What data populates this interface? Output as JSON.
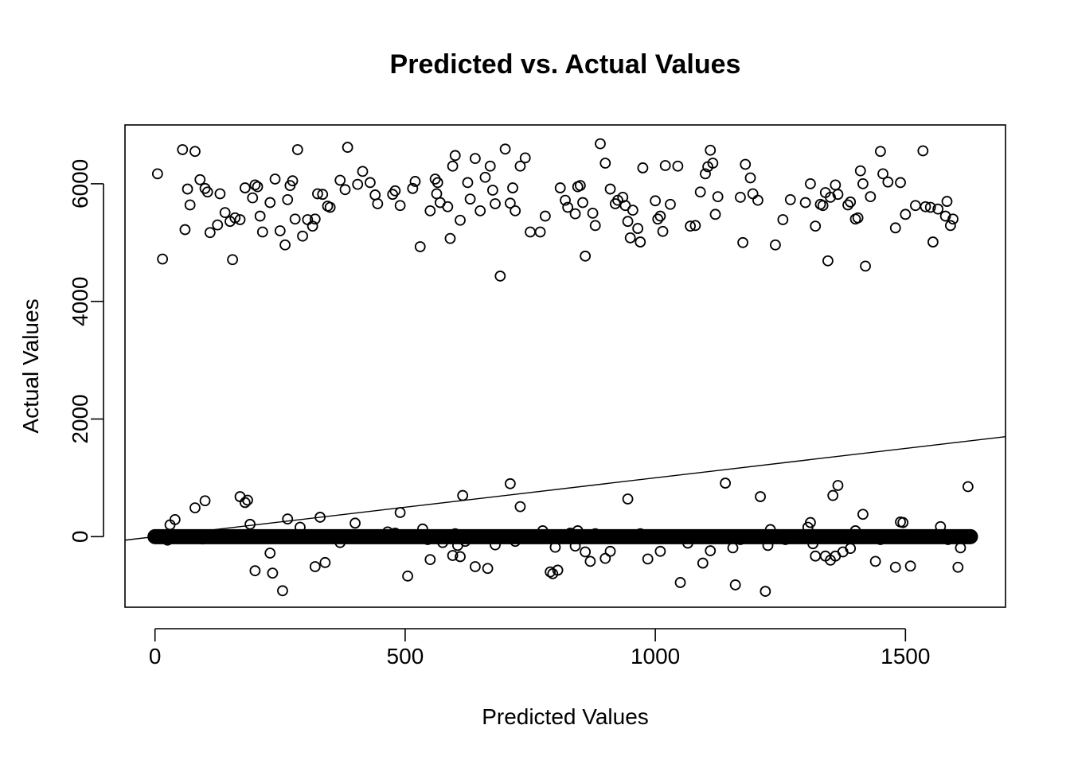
{
  "chart_data": {
    "type": "scatter",
    "title": "Predicted vs. Actual Values",
    "xlabel": "Predicted Values",
    "ylabel": "Actual Values",
    "xlim": [
      -60,
      1700
    ],
    "ylim": [
      -1200,
      7000
    ],
    "x_ticks": [
      0,
      500,
      1000,
      1500
    ],
    "x_tick_labels": [
      "0",
      "500",
      "1000",
      "1500"
    ],
    "y_ticks": [
      0,
      2000,
      4000,
      6000
    ],
    "y_tick_labels": [
      "0",
      "2000",
      "4000",
      "6000"
    ],
    "grid": false,
    "legend": "none",
    "reference_line": {
      "slope": 1,
      "intercept": 0,
      "label": "y = x"
    },
    "dense_band": {
      "y": 0,
      "x_from": 0,
      "x_to": 1630
    },
    "points": [
      [
        5,
        6170
      ],
      [
        15,
        4720
      ],
      [
        55,
        6580
      ],
      [
        60,
        5220
      ],
      [
        65,
        5910
      ],
      [
        70,
        5640
      ],
      [
        80,
        6550
      ],
      [
        90,
        6070
      ],
      [
        100,
        5920
      ],
      [
        105,
        5860
      ],
      [
        110,
        5170
      ],
      [
        125,
        5300
      ],
      [
        130,
        5830
      ],
      [
        140,
        5510
      ],
      [
        150,
        5360
      ],
      [
        155,
        4710
      ],
      [
        160,
        5420
      ],
      [
        170,
        5390
      ],
      [
        180,
        5930
      ],
      [
        195,
        5760
      ],
      [
        200,
        5980
      ],
      [
        205,
        5950
      ],
      [
        210,
        5450
      ],
      [
        215,
        5180
      ],
      [
        230,
        5680
      ],
      [
        240,
        6080
      ],
      [
        250,
        5200
      ],
      [
        260,
        4960
      ],
      [
        265,
        5730
      ],
      [
        270,
        5970
      ],
      [
        275,
        6050
      ],
      [
        280,
        5400
      ],
      [
        285,
        6580
      ],
      [
        295,
        5110
      ],
      [
        305,
        5390
      ],
      [
        315,
        5280
      ],
      [
        320,
        5400
      ],
      [
        325,
        5830
      ],
      [
        335,
        5820
      ],
      [
        345,
        5620
      ],
      [
        350,
        5600
      ],
      [
        370,
        6060
      ],
      [
        380,
        5900
      ],
      [
        385,
        6620
      ],
      [
        405,
        5990
      ],
      [
        415,
        6210
      ],
      [
        430,
        6020
      ],
      [
        440,
        5810
      ],
      [
        445,
        5660
      ],
      [
        475,
        5820
      ],
      [
        480,
        5880
      ],
      [
        490,
        5630
      ],
      [
        515,
        5920
      ],
      [
        520,
        6040
      ],
      [
        530,
        4930
      ],
      [
        550,
        5540
      ],
      [
        560,
        6080
      ],
      [
        563,
        5830
      ],
      [
        565,
        6020
      ],
      [
        570,
        5680
      ],
      [
        585,
        5610
      ],
      [
        590,
        5070
      ],
      [
        595,
        6300
      ],
      [
        600,
        6480
      ],
      [
        610,
        5380
      ],
      [
        625,
        6020
      ],
      [
        630,
        5740
      ],
      [
        640,
        6430
      ],
      [
        650,
        5540
      ],
      [
        660,
        6110
      ],
      [
        670,
        6300
      ],
      [
        675,
        5890
      ],
      [
        680,
        5660
      ],
      [
        690,
        4430
      ],
      [
        700,
        6590
      ],
      [
        710,
        5670
      ],
      [
        715,
        5930
      ],
      [
        720,
        5540
      ],
      [
        730,
        6300
      ],
      [
        740,
        6440
      ],
      [
        750,
        5180
      ],
      [
        770,
        5180
      ],
      [
        780,
        5450
      ],
      [
        810,
        5930
      ],
      [
        820,
        5720
      ],
      [
        825,
        5600
      ],
      [
        840,
        5490
      ],
      [
        845,
        5950
      ],
      [
        850,
        5970
      ],
      [
        855,
        5680
      ],
      [
        860,
        4770
      ],
      [
        875,
        5500
      ],
      [
        880,
        5290
      ],
      [
        890,
        6680
      ],
      [
        900,
        6350
      ],
      [
        910,
        5910
      ],
      [
        920,
        5660
      ],
      [
        925,
        5720
      ],
      [
        935,
        5770
      ],
      [
        940,
        5630
      ],
      [
        945,
        5360
      ],
      [
        950,
        5080
      ],
      [
        955,
        5550
      ],
      [
        965,
        5240
      ],
      [
        970,
        5010
      ],
      [
        975,
        6270
      ],
      [
        1000,
        5710
      ],
      [
        1005,
        5400
      ],
      [
        1010,
        5450
      ],
      [
        1015,
        5190
      ],
      [
        1020,
        6310
      ],
      [
        1030,
        5650
      ],
      [
        1045,
        6300
      ],
      [
        1070,
        5280
      ],
      [
        1080,
        5290
      ],
      [
        1090,
        5860
      ],
      [
        1100,
        6170
      ],
      [
        1105,
        6290
      ],
      [
        1110,
        6570
      ],
      [
        1115,
        6350
      ],
      [
        1120,
        5480
      ],
      [
        1125,
        5780
      ],
      [
        1170,
        5770
      ],
      [
        1175,
        5000
      ],
      [
        1180,
        6330
      ],
      [
        1190,
        6100
      ],
      [
        1195,
        5830
      ],
      [
        1205,
        5720
      ],
      [
        1240,
        4960
      ],
      [
        1255,
        5390
      ],
      [
        1270,
        5730
      ],
      [
        1300,
        5680
      ],
      [
        1310,
        6000
      ],
      [
        1320,
        5280
      ],
      [
        1330,
        5650
      ],
      [
        1335,
        5630
      ],
      [
        1340,
        5850
      ],
      [
        1345,
        4690
      ],
      [
        1350,
        5770
      ],
      [
        1360,
        5980
      ],
      [
        1365,
        5820
      ],
      [
        1385,
        5640
      ],
      [
        1390,
        5690
      ],
      [
        1400,
        5400
      ],
      [
        1405,
        5420
      ],
      [
        1410,
        6220
      ],
      [
        1415,
        6000
      ],
      [
        1420,
        4600
      ],
      [
        1430,
        5780
      ],
      [
        1450,
        6550
      ],
      [
        1455,
        6170
      ],
      [
        1465,
        6030
      ],
      [
        1480,
        5250
      ],
      [
        1490,
        6020
      ],
      [
        1500,
        5480
      ],
      [
        1520,
        5630
      ],
      [
        1535,
        6560
      ],
      [
        1540,
        5610
      ],
      [
        1550,
        5600
      ],
      [
        1555,
        5010
      ],
      [
        1565,
        5570
      ],
      [
        1580,
        5450
      ],
      [
        1583,
        5700
      ],
      [
        1590,
        5290
      ],
      [
        1595,
        5400
      ],
      [
        25,
        -60
      ],
      [
        30,
        200
      ],
      [
        40,
        290
      ],
      [
        80,
        490
      ],
      [
        95,
        -40
      ],
      [
        100,
        610
      ],
      [
        170,
        680
      ],
      [
        180,
        580
      ],
      [
        185,
        620
      ],
      [
        190,
        210
      ],
      [
        200,
        -580
      ],
      [
        230,
        -280
      ],
      [
        235,
        -620
      ],
      [
        255,
        -920
      ],
      [
        265,
        300
      ],
      [
        290,
        160
      ],
      [
        320,
        -510
      ],
      [
        330,
        330
      ],
      [
        340,
        -440
      ],
      [
        370,
        -100
      ],
      [
        400,
        230
      ],
      [
        465,
        80
      ],
      [
        480,
        60
      ],
      [
        490,
        410
      ],
      [
        505,
        -670
      ],
      [
        535,
        130
      ],
      [
        545,
        -50
      ],
      [
        550,
        -390
      ],
      [
        575,
        -100
      ],
      [
        595,
        -320
      ],
      [
        600,
        50
      ],
      [
        605,
        -150
      ],
      [
        610,
        -340
      ],
      [
        615,
        700
      ],
      [
        620,
        -80
      ],
      [
        640,
        -510
      ],
      [
        665,
        -540
      ],
      [
        680,
        -140
      ],
      [
        710,
        900
      ],
      [
        720,
        -80
      ],
      [
        730,
        510
      ],
      [
        775,
        100
      ],
      [
        790,
        -600
      ],
      [
        795,
        -630
      ],
      [
        800,
        -180
      ],
      [
        805,
        -570
      ],
      [
        830,
        60
      ],
      [
        840,
        -160
      ],
      [
        845,
        100
      ],
      [
        860,
        -260
      ],
      [
        870,
        -420
      ],
      [
        880,
        50
      ],
      [
        900,
        -370
      ],
      [
        910,
        -250
      ],
      [
        945,
        640
      ],
      [
        970,
        50
      ],
      [
        985,
        -380
      ],
      [
        1010,
        -250
      ],
      [
        1050,
        -780
      ],
      [
        1065,
        -110
      ],
      [
        1095,
        -450
      ],
      [
        1110,
        -240
      ],
      [
        1140,
        910
      ],
      [
        1155,
        -190
      ],
      [
        1160,
        -820
      ],
      [
        1170,
        -50
      ],
      [
        1210,
        680
      ],
      [
        1220,
        -930
      ],
      [
        1225,
        -150
      ],
      [
        1230,
        120
      ],
      [
        1260,
        -50
      ],
      [
        1305,
        160
      ],
      [
        1310,
        240
      ],
      [
        1315,
        -120
      ],
      [
        1320,
        -330
      ],
      [
        1340,
        -330
      ],
      [
        1350,
        -400
      ],
      [
        1355,
        700
      ],
      [
        1360,
        -330
      ],
      [
        1365,
        870
      ],
      [
        1375,
        -260
      ],
      [
        1390,
        -200
      ],
      [
        1400,
        100
      ],
      [
        1415,
        380
      ],
      [
        1440,
        -420
      ],
      [
        1450,
        -50
      ],
      [
        1480,
        -520
      ],
      [
        1490,
        250
      ],
      [
        1495,
        240
      ],
      [
        1510,
        -500
      ],
      [
        1570,
        170
      ],
      [
        1585,
        -50
      ],
      [
        1605,
        -520
      ],
      [
        1610,
        -190
      ],
      [
        1625,
        850
      ]
    ]
  }
}
